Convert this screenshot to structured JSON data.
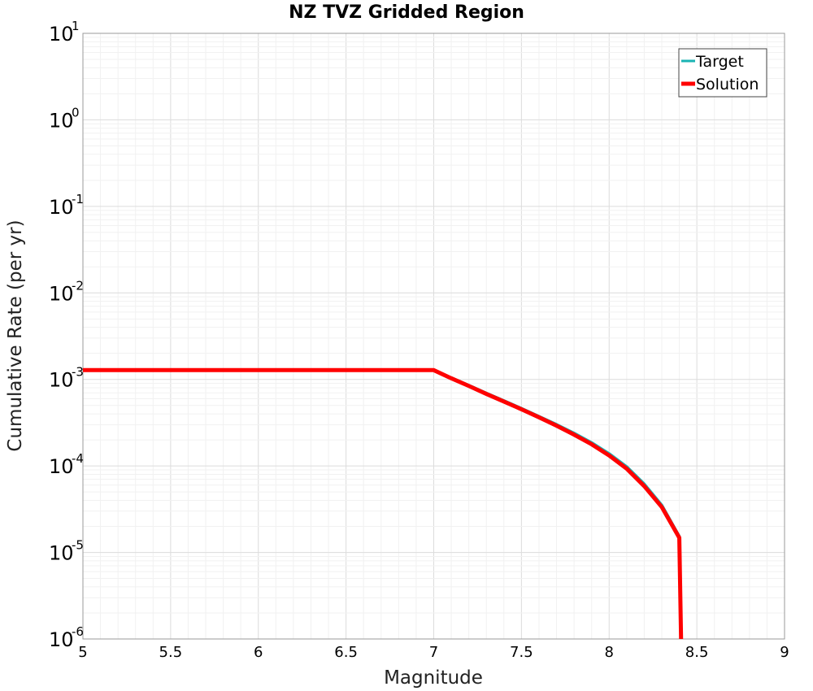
{
  "chart_data": {
    "type": "line",
    "title": "NZ TVZ Gridded Region",
    "xlabel": "Magnitude",
    "ylabel": "Cumulative Rate (per yr)",
    "xlim": [
      5,
      9
    ],
    "ylim": [
      1e-06,
      10
    ],
    "yscale": "log",
    "grid": true,
    "legend_position": "top-right",
    "x_ticks": [
      {
        "value": 5,
        "label": "5"
      },
      {
        "value": 5.5,
        "label": "5.5"
      },
      {
        "value": 6,
        "label": "6"
      },
      {
        "value": 6.5,
        "label": "6.5"
      },
      {
        "value": 7,
        "label": "7"
      },
      {
        "value": 7.5,
        "label": "7.5"
      },
      {
        "value": 8,
        "label": "8"
      },
      {
        "value": 8.5,
        "label": "8.5"
      },
      {
        "value": 9,
        "label": "9"
      }
    ],
    "y_ticks": [
      {
        "value": 10,
        "base": "10",
        "exp": "1"
      },
      {
        "value": 1,
        "base": "10",
        "exp": "0"
      },
      {
        "value": 0.1,
        "base": "10",
        "exp": "-1"
      },
      {
        "value": 0.01,
        "base": "10",
        "exp": "-2"
      },
      {
        "value": 0.001,
        "base": "10",
        "exp": "-3"
      },
      {
        "value": 0.0001,
        "base": "10",
        "exp": "-4"
      },
      {
        "value": 1e-05,
        "base": "10",
        "exp": "-5"
      },
      {
        "value": 1e-06,
        "base": "10",
        "exp": "-6"
      }
    ],
    "series": [
      {
        "name": "Target",
        "color": "#1ab3b3",
        "x": [
          5.0,
          7.0,
          7.1,
          7.2,
          7.3,
          7.4,
          7.5,
          7.6,
          7.7,
          7.8,
          7.9,
          8.0,
          8.1,
          8.2,
          8.3,
          8.4,
          8.41
        ],
        "y": [
          0.00128,
          0.00128,
          0.00104,
          0.00085,
          0.00069,
          0.000565,
          0.00046,
          0.000372,
          0.0003,
          0.000238,
          0.000185,
          0.000138,
          9.75e-05,
          6.15e-05,
          3.5e-05,
          1.52e-05,
          1e-06
        ]
      },
      {
        "name": "Solution",
        "color": "#ff0000",
        "x": [
          5.0,
          7.0,
          7.1,
          7.2,
          7.3,
          7.4,
          7.5,
          7.6,
          7.7,
          7.8,
          7.9,
          8.0,
          8.1,
          8.2,
          8.3,
          8.4,
          8.41
        ],
        "y": [
          0.00128,
          0.00128,
          0.00103,
          0.00084,
          0.00068,
          0.000555,
          0.000452,
          0.000365,
          0.000292,
          0.00023,
          0.000178,
          0.000132,
          9.3e-05,
          5.85e-05,
          3.35e-05,
          1.48e-05,
          1e-06
        ]
      }
    ]
  }
}
